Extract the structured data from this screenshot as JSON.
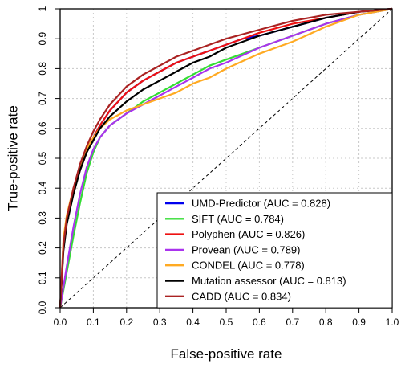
{
  "chart_data": {
    "type": "line",
    "title": "",
    "xlabel": "False-positive rate",
    "ylabel": "True-positive rate",
    "xlim": [
      0,
      1
    ],
    "ylim": [
      0,
      1
    ],
    "xticks": [
      "0.0",
      "0.1",
      "0.2",
      "0.3",
      "0.4",
      "0.5",
      "0.6",
      "0.7",
      "0.8",
      "0.9",
      "1.0"
    ],
    "yticks": [
      "0.0",
      "0.1",
      "0.2",
      "0.3",
      "0.4",
      "0.5",
      "0.6",
      "0.7",
      "0.8",
      "0.9",
      "1"
    ],
    "grid": true,
    "legend_position": "bottom-right",
    "reference_line": {
      "x": [
        0,
        1
      ],
      "y": [
        0,
        1
      ],
      "style": "dashed",
      "color": "#000000"
    },
    "series": [
      {
        "name": "UMD-Predictor (AUC = 0.828)",
        "color": "#0000ee",
        "x": [
          0,
          0.01,
          0.02,
          0.04,
          0.06,
          0.08,
          0.1,
          0.12,
          0.15,
          0.2,
          0.25,
          0.3,
          0.35,
          0.4,
          0.45,
          0.5,
          0.55,
          0.6,
          0.7,
          0.8,
          0.9,
          1.0
        ],
        "y": [
          0,
          0.22,
          0.3,
          0.39,
          0.46,
          0.52,
          0.57,
          0.61,
          0.66,
          0.72,
          0.76,
          0.79,
          0.82,
          0.84,
          0.86,
          0.88,
          0.9,
          0.91,
          0.94,
          0.97,
          0.99,
          1.0
        ]
      },
      {
        "name": "SIFT (AUC = 0.784)",
        "color": "#33dd33",
        "x": [
          0,
          0.02,
          0.04,
          0.06,
          0.08,
          0.1,
          0.12,
          0.15,
          0.2,
          0.25,
          0.3,
          0.35,
          0.4,
          0.45,
          0.5,
          0.6,
          0.7,
          0.8,
          0.9,
          1.0
        ],
        "y": [
          0,
          0.12,
          0.24,
          0.35,
          0.45,
          0.52,
          0.57,
          0.61,
          0.65,
          0.69,
          0.72,
          0.75,
          0.78,
          0.81,
          0.83,
          0.87,
          0.91,
          0.95,
          0.98,
          1.0
        ]
      },
      {
        "name": "Polyphen (AUC = 0.826)",
        "color": "#ee1111",
        "x": [
          0,
          0.01,
          0.02,
          0.04,
          0.06,
          0.08,
          0.1,
          0.12,
          0.15,
          0.2,
          0.25,
          0.3,
          0.35,
          0.4,
          0.45,
          0.5,
          0.6,
          0.7,
          0.8,
          0.9,
          1.0
        ],
        "y": [
          0,
          0.2,
          0.29,
          0.39,
          0.46,
          0.52,
          0.57,
          0.61,
          0.66,
          0.72,
          0.76,
          0.79,
          0.82,
          0.84,
          0.86,
          0.88,
          0.92,
          0.95,
          0.97,
          0.99,
          1.0
        ]
      },
      {
        "name": "Provean (AUC = 0.789)",
        "color": "#aa33ee",
        "x": [
          0,
          0.02,
          0.04,
          0.06,
          0.08,
          0.1,
          0.12,
          0.15,
          0.2,
          0.25,
          0.3,
          0.35,
          0.4,
          0.45,
          0.5,
          0.6,
          0.7,
          0.8,
          0.9,
          1.0
        ],
        "y": [
          0,
          0.14,
          0.27,
          0.38,
          0.47,
          0.53,
          0.57,
          0.61,
          0.65,
          0.68,
          0.71,
          0.74,
          0.77,
          0.8,
          0.82,
          0.87,
          0.91,
          0.95,
          0.98,
          1.0
        ]
      },
      {
        "name": "CONDEL (AUC = 0.778)",
        "color": "#ffaa22",
        "x": [
          0,
          0.01,
          0.02,
          0.04,
          0.06,
          0.08,
          0.1,
          0.12,
          0.15,
          0.2,
          0.25,
          0.3,
          0.35,
          0.4,
          0.45,
          0.5,
          0.6,
          0.7,
          0.8,
          0.9,
          1.0
        ],
        "y": [
          0,
          0.23,
          0.31,
          0.4,
          0.47,
          0.53,
          0.57,
          0.6,
          0.63,
          0.66,
          0.68,
          0.7,
          0.72,
          0.75,
          0.77,
          0.8,
          0.85,
          0.89,
          0.94,
          0.98,
          1.0
        ]
      },
      {
        "name": "Mutation assessor (AUC = 0.813)",
        "color": "#000000",
        "x": [
          0,
          0.01,
          0.02,
          0.04,
          0.06,
          0.08,
          0.1,
          0.12,
          0.15,
          0.2,
          0.25,
          0.3,
          0.35,
          0.4,
          0.45,
          0.5,
          0.6,
          0.7,
          0.8,
          0.9,
          1.0
        ],
        "y": [
          0,
          0.19,
          0.28,
          0.38,
          0.46,
          0.52,
          0.56,
          0.6,
          0.64,
          0.69,
          0.73,
          0.76,
          0.79,
          0.82,
          0.84,
          0.87,
          0.91,
          0.94,
          0.97,
          0.99,
          1.0
        ]
      },
      {
        "name": "CADD (AUC = 0.834)",
        "color": "#aa2222",
        "x": [
          0,
          0.01,
          0.02,
          0.04,
          0.06,
          0.08,
          0.1,
          0.12,
          0.15,
          0.2,
          0.25,
          0.3,
          0.35,
          0.4,
          0.45,
          0.5,
          0.6,
          0.7,
          0.8,
          0.9,
          1.0
        ],
        "y": [
          0,
          0.21,
          0.3,
          0.4,
          0.48,
          0.54,
          0.59,
          0.63,
          0.68,
          0.74,
          0.78,
          0.81,
          0.84,
          0.86,
          0.88,
          0.9,
          0.93,
          0.96,
          0.98,
          0.99,
          1.0
        ]
      }
    ]
  }
}
